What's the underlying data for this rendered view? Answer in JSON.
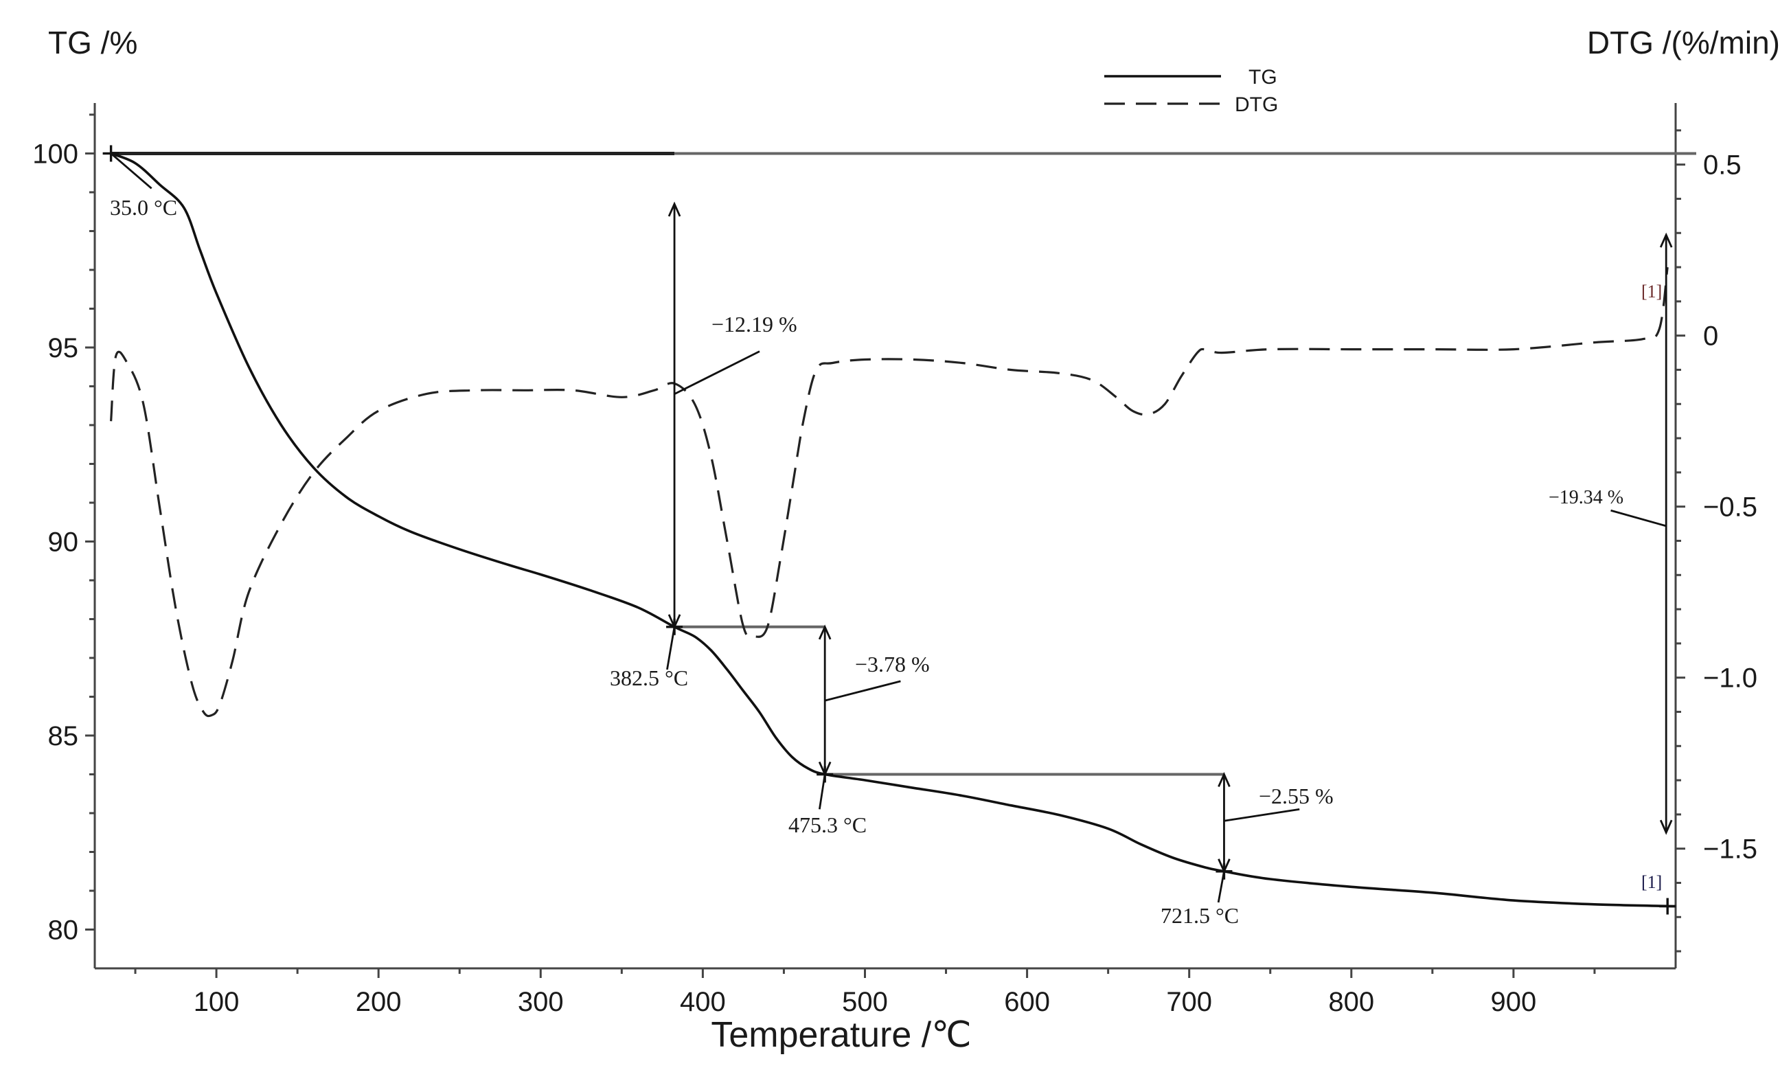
{
  "chart_data": {
    "type": "line",
    "title": "",
    "xlabel": "Temperature /℃",
    "ylabel_left": "TG /%",
    "ylabel_right": "DTG /(%/min)",
    "xlim": [
      25,
      1000
    ],
    "ylim_left": [
      79,
      101.3
    ],
    "ylim_right": [
      -1.85,
      0.68
    ],
    "x_ticks": [
      100,
      200,
      300,
      400,
      500,
      600,
      700,
      800,
      900
    ],
    "x_tick_labels": [
      "100",
      "200",
      "300",
      "400",
      "500",
      "600",
      "700",
      "800",
      "900"
    ],
    "y_left_ticks": [
      80,
      85,
      90,
      95,
      100
    ],
    "y_left_tick_labels": [
      "80",
      "85",
      "90",
      "95",
      "100"
    ],
    "y_right_ticks": [
      -1.5,
      -1.0,
      -0.5,
      0,
      0.5
    ],
    "y_right_tick_labels": [
      "−1.5",
      "−1.0",
      "−0.5",
      "0",
      "0.5"
    ],
    "grid": false,
    "legend": {
      "position": "top-center",
      "entries": [
        {
          "label": "TG",
          "style": "solid"
        },
        {
          "label": "DTG",
          "style": "dashed"
        }
      ]
    },
    "series": [
      {
        "name": "TG",
        "axis": "left",
        "style": "solid",
        "x": [
          35,
          50,
          65,
          80,
          90,
          100,
          120,
          140,
          160,
          180,
          200,
          220,
          250,
          280,
          300,
          330,
          360,
          382.5,
          395,
          405,
          415,
          425,
          435,
          445,
          455,
          465,
          475.3,
          500,
          530,
          560,
          590,
          620,
          650,
          670,
          690,
          710,
          721.5,
          750,
          800,
          850,
          900,
          950,
          1000
        ],
        "y": [
          100,
          99.75,
          99.2,
          98.6,
          97.5,
          96.4,
          94.5,
          93,
          91.9,
          91.15,
          90.65,
          90.25,
          89.8,
          89.4,
          89.15,
          88.75,
          88.3,
          87.8,
          87.55,
          87.2,
          86.7,
          86.15,
          85.6,
          84.95,
          84.45,
          84.15,
          84.0,
          83.85,
          83.65,
          83.45,
          83.2,
          82.95,
          82.6,
          82.2,
          81.85,
          81.6,
          81.5,
          81.3,
          81.1,
          80.95,
          80.75,
          80.65,
          80.6
        ]
      },
      {
        "name": "DTG",
        "axis": "right",
        "style": "dashed",
        "x": [
          35,
          38,
          45,
          55,
          65,
          75,
          85,
          92,
          97,
          102,
          110,
          120,
          140,
          160,
          180,
          200,
          230,
          260,
          290,
          320,
          350,
          370,
          382.5,
          395,
          405,
          415,
          425,
          432,
          440,
          448,
          455,
          462,
          470,
          480,
          500,
          530,
          560,
          590,
          620,
          640,
          655,
          665,
          675,
          685,
          695,
          705,
          710,
          720,
          750,
          800,
          850,
          900,
          950,
          980,
          990,
          995
        ],
        "y": [
          -0.25,
          -0.06,
          -0.08,
          -0.2,
          -0.5,
          -0.8,
          -1.02,
          -1.1,
          -1.11,
          -1.08,
          -0.95,
          -0.75,
          -0.55,
          -0.4,
          -0.3,
          -0.22,
          -0.17,
          -0.16,
          -0.16,
          -0.16,
          -0.18,
          -0.16,
          -0.14,
          -0.2,
          -0.35,
          -0.6,
          -0.85,
          -0.88,
          -0.85,
          -0.65,
          -0.45,
          -0.25,
          -0.1,
          -0.08,
          -0.07,
          -0.07,
          -0.08,
          -0.1,
          -0.11,
          -0.13,
          -0.18,
          -0.22,
          -0.23,
          -0.2,
          -0.12,
          -0.05,
          -0.04,
          -0.05,
          -0.04,
          -0.04,
          -0.04,
          -0.04,
          -0.02,
          -0.01,
          0.02,
          0.2
        ]
      }
    ],
    "markers": [
      {
        "label": "35.0 °C",
        "x": 35.0,
        "y": 100
      },
      {
        "label": "382.5 °C",
        "x": 382.5,
        "y": 87.8
      },
      {
        "label": "475.3 °C",
        "x": 475.3,
        "y": 84.0
      },
      {
        "label": "721.5 °C",
        "x": 721.5,
        "y": 81.5
      }
    ],
    "mass_losses": [
      {
        "label": "−12.19 %",
        "x": 382.5,
        "from": 98.7,
        "to": 87.8
      },
      {
        "label": "−3.78 %",
        "x": 475.3,
        "from": 87.8,
        "to": 84.0
      },
      {
        "label": "−2.55 %",
        "x": 721.5,
        "from": 84.0,
        "to": 81.5
      },
      {
        "label": "−19.34 %",
        "x": 995,
        "from": 97.9,
        "to": 82.5
      }
    ],
    "end_tags": [
      "[1]",
      "[1]"
    ]
  }
}
